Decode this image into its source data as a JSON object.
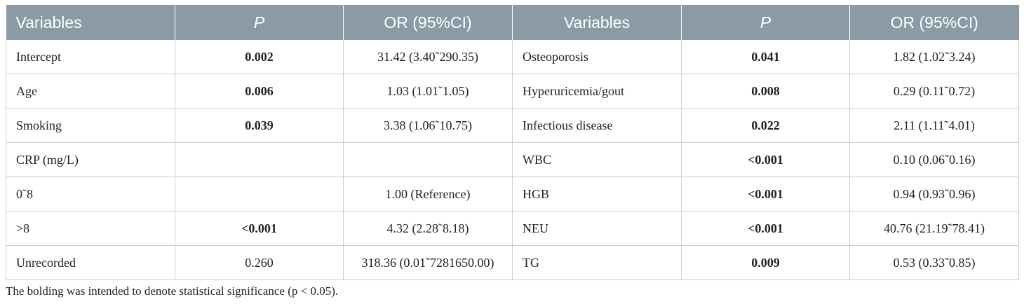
{
  "table": {
    "headers": [
      "Variables",
      "P",
      "OR (95%CI)",
      "Variables",
      "P",
      "OR (95%CI)"
    ],
    "rows": [
      [
        "Intercept",
        "0.002",
        "31.42 (3.40˜290.35)",
        "Osteoporosis",
        "0.041",
        "1.82 (1.02˜3.24)"
      ],
      [
        "Age",
        "0.006",
        "1.03 (1.01˜1.05)",
        "Hyperuricemia/gout",
        "0.008",
        "0.29 (0.11˜0.72)"
      ],
      [
        "Smoking",
        "0.039",
        "3.38 (1.06˜10.75)",
        "Infectious disease",
        "0.022",
        "2.11 (1.11˜4.01)"
      ],
      [
        "CRP (mg/L)",
        "",
        "",
        "WBC",
        "<0.001",
        "0.10 (0.06˜0.16)"
      ],
      [
        "0˜8",
        "",
        "1.00 (Reference)",
        "HGB",
        "<0.001",
        "0.94 (0.93˜0.96)"
      ],
      [
        ">8",
        "<0.001",
        "4.32 (2.28˜8.18)",
        "NEU",
        "<0.001",
        "40.76 (21.19˜78.41)"
      ],
      [
        "Unrecorded",
        "0.260",
        "318.36 (0.01˜7281650.00)",
        "TG",
        "0.009",
        "0.53 (0.33˜0.85)"
      ]
    ]
  },
  "footnote": "The bolding was intended to denote statistical significance (p < 0.05).",
  "colors": {
    "header_bg": "#8a9ba6",
    "header_text": "#ffffff",
    "grid": "#c9cfd3"
  }
}
